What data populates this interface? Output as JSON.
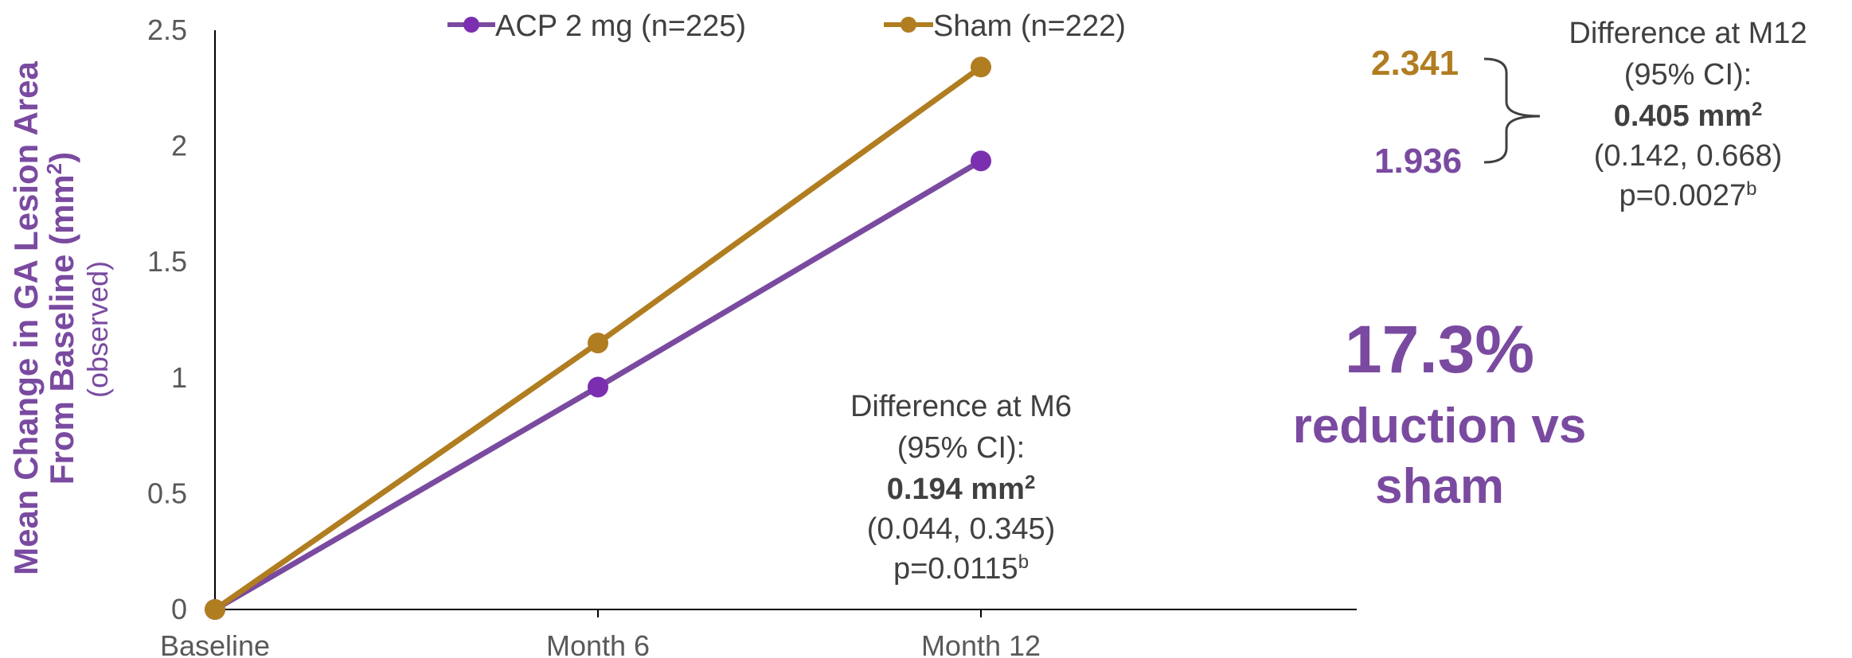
{
  "chart_data": {
    "type": "line",
    "categories": [
      "Baseline",
      "Month 6",
      "Month 12"
    ],
    "ylim": [
      0,
      2.5
    ],
    "yticks": [
      "0",
      "0.5",
      "1",
      "1.5",
      "2",
      "2.5"
    ],
    "grid": false,
    "legend_position": "top",
    "ylabel_line1": "Mean Change in GA Lesion Area",
    "ylabel_line2_prefix": "From Baseline (mm",
    "ylabel_line2_sup": "2",
    "ylabel_line2_suffix": ")",
    "ylabel_sub": "(observed)",
    "series": [
      {
        "name": "ACP 2 mg (n=225)",
        "color": "#7a4aa0",
        "marker": "#7b2fb0",
        "values": [
          0,
          0.96,
          1.936
        ],
        "end_label": "1.936"
      },
      {
        "name": "Sham (n=222)",
        "color": "#b07d20",
        "marker": "#b07d20",
        "values": [
          0,
          1.15,
          2.341
        ],
        "end_label": "2.341"
      }
    ]
  },
  "annotations": {
    "m6": {
      "line1": "Difference  at M6",
      "line2": "(95% CI):",
      "value": "0.194 mm",
      "value_sup": "2",
      "ci": "(0.044, 0.345)",
      "p": "p=0.0115",
      "p_sup": "b"
    },
    "m12": {
      "line1": "Difference at M12",
      "line2": "(95% CI):",
      "value": "0.405 mm",
      "value_sup": "2",
      "ci": "(0.142, 0.668)",
      "p": "p=0.0027",
      "p_sup": "b"
    },
    "reduction": {
      "pct": "17.3%",
      "line1": "reduction vs",
      "line2": "sham"
    }
  },
  "colors": {
    "purple_text": "#7a4aa0",
    "axis": "#000000",
    "text": "#404040"
  }
}
